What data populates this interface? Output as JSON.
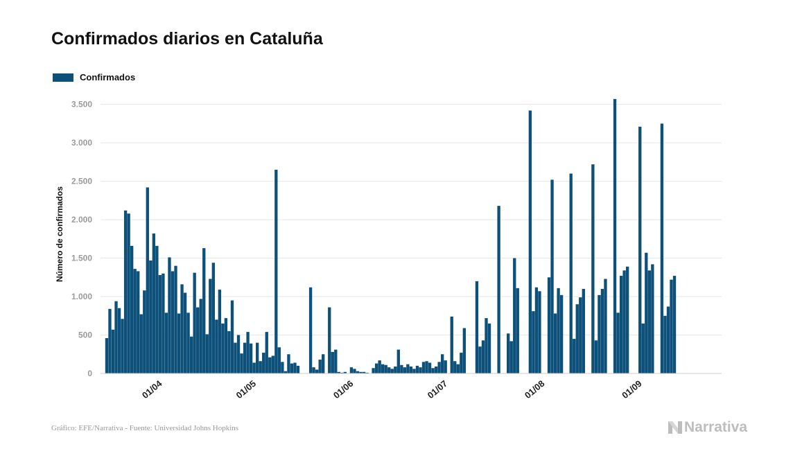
{
  "chart_data": {
    "type": "bar",
    "title": "Confirmados diarios en Cataluña",
    "ylabel": "Número de confirmados",
    "xlabel": "",
    "x_start": "2020-03-16",
    "x_axis_range": [
      "2020-03-14",
      "2020-09-28"
    ],
    "ylim": [
      0,
      3650
    ],
    "y_ticks": [
      0,
      500,
      1000,
      1500,
      2000,
      2500,
      3000,
      3500
    ],
    "y_tick_labels": [
      "0",
      "500",
      "1.000",
      "1.500",
      "2.000",
      "2.500",
      "3.000",
      "3.500"
    ],
    "x_ticks": [
      "2020-04-01",
      "2020-05-01",
      "2020-06-01",
      "2020-07-01",
      "2020-08-01",
      "2020-09-01"
    ],
    "x_tick_labels": [
      "01/04",
      "01/05",
      "01/06",
      "01/07",
      "01/08",
      "01/09"
    ],
    "grid": "horizontal",
    "legend_position": "top-left",
    "series": [
      {
        "name": "Confirmados",
        "color": "#0d5079",
        "values": [
          460,
          840,
          570,
          940,
          850,
          710,
          2120,
          2080,
          1660,
          1360,
          1330,
          770,
          1080,
          2420,
          1470,
          1820,
          1660,
          1280,
          1300,
          790,
          1510,
          1330,
          1400,
          780,
          1160,
          1050,
          790,
          480,
          1310,
          860,
          970,
          1630,
          510,
          1230,
          1440,
          700,
          1090,
          650,
          720,
          550,
          950,
          400,
          500,
          260,
          400,
          540,
          390,
          140,
          400,
          160,
          270,
          540,
          210,
          230,
          2650,
          340,
          150,
          30,
          250,
          130,
          140,
          100,
          0,
          0,
          0,
          1120,
          80,
          50,
          180,
          250,
          0,
          860,
          280,
          310,
          20,
          10,
          20,
          0,
          80,
          60,
          30,
          20,
          20,
          10,
          0,
          70,
          130,
          170,
          120,
          110,
          80,
          60,
          90,
          310,
          110,
          80,
          120,
          90,
          60,
          100,
          80,
          150,
          160,
          140,
          70,
          90,
          150,
          250,
          170,
          0,
          740,
          160,
          120,
          270,
          590,
          0,
          0,
          0,
          1200,
          350,
          430,
          720,
          650,
          0,
          0,
          2180,
          0,
          0,
          520,
          420,
          1500,
          1110,
          0,
          0,
          0,
          3420,
          810,
          1120,
          1070,
          0,
          0,
          1250,
          2520,
          780,
          1110,
          1020,
          0,
          0,
          2600,
          450,
          900,
          990,
          1100,
          0,
          0,
          2720,
          430,
          1020,
          1100,
          1230,
          0,
          0,
          3570,
          790,
          1270,
          1340,
          1390,
          0,
          0,
          0,
          3210,
          650,
          1570,
          1340,
          1420,
          0,
          0,
          3250,
          750,
          870,
          1220,
          1270
        ]
      }
    ]
  },
  "footer": {
    "source": "Gráfico: EFE/Narrativa - Fuente: Universidad Johns Hopkins",
    "logo_text": "Narrativa"
  },
  "colors": {
    "bar": "#0d5079",
    "grid": "#e6e6e6",
    "logo": "#bdbdbd"
  }
}
